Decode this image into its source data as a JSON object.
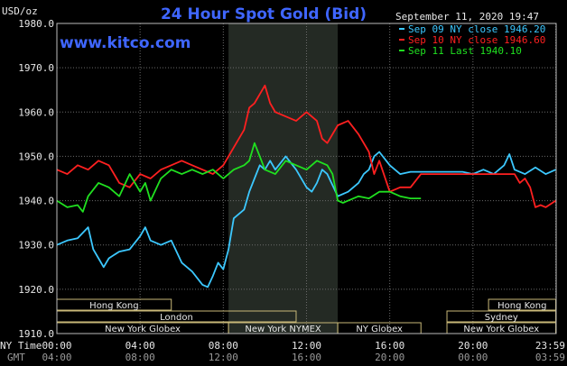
{
  "chart_data": {
    "type": "line",
    "title": "24 Hour Spot Gold (Bid)",
    "watermark": "www.kitco.com",
    "date_label": "September 11, 2020 19:47",
    "ylabel": "USD/oz",
    "ylim": [
      1910,
      1980
    ],
    "y_ticks": [
      "1980.0",
      "1970.0",
      "1960.0",
      "1950.0",
      "1940.0",
      "1930.0",
      "1920.0",
      "1910.0"
    ],
    "y_tick_values": [
      1980,
      1970,
      1960,
      1950,
      1940,
      1930,
      1920,
      1910
    ],
    "x_hours": [
      0,
      24
    ],
    "x_ticks_ny": [
      "00:00",
      "04:00",
      "08:00",
      "12:00",
      "16:00",
      "20:00",
      "23:59"
    ],
    "x_ticks_gmt": [
      "04:00",
      "08:00",
      "12:00",
      "16:00",
      "20:00",
      "00:00",
      "03:59"
    ],
    "x_tick_hours": [
      0,
      4,
      8,
      12,
      16,
      20,
      23.98
    ],
    "ny_time_label": "NY Time",
    "gmt_label": "GMT",
    "grid": true,
    "highlight_band_hours": [
      8.25,
      13.5
    ],
    "legend": [
      {
        "label": "Sep 09 NY close 1946.20",
        "color": "#3cc8ff"
      },
      {
        "label": "Sep 10 NY close 1946.60",
        "color": "#ff2020"
      },
      {
        "label": "Sep 11 Last 1940.10",
        "color": "#20e020"
      }
    ],
    "sessions": [
      {
        "label": "Hong Kong",
        "start": 0,
        "end": 5.5,
        "row": 0
      },
      {
        "label": "London",
        "start": 0,
        "end": 11.5,
        "row": 1
      },
      {
        "label": "New York Globex",
        "start": 0,
        "end": 8.25,
        "row": 2
      },
      {
        "label": "New York NYMEX",
        "start": 8.25,
        "end": 13.5,
        "row": 2
      },
      {
        "label": "NY Globex",
        "start": 13.5,
        "end": 17.5,
        "row": 2
      },
      {
        "label": "Hong Kong",
        "start": 20.75,
        "end": 23.98,
        "row": 0
      },
      {
        "label": "Sydney",
        "start": 18.75,
        "end": 23.98,
        "row": 1
      },
      {
        "label": "New York Globex",
        "start": 18.75,
        "end": 23.98,
        "row": 2
      }
    ],
    "series": [
      {
        "name": "Sep 09 NY close 1946.20",
        "color": "#3cc8ff",
        "x": [
          0,
          0.5,
          1.0,
          1.5,
          1.75,
          2.0,
          2.25,
          2.5,
          3.0,
          3.5,
          4.0,
          4.25,
          4.5,
          5.0,
          5.5,
          6.0,
          6.5,
          7.0,
          7.25,
          7.5,
          7.75,
          8.0,
          8.25,
          8.5,
          9.0,
          9.25,
          9.5,
          9.75,
          10.0,
          10.25,
          10.5,
          11.0,
          11.5,
          12.0,
          12.25,
          12.5,
          12.75,
          13.0,
          13.5,
          14.0,
          14.5,
          14.75,
          15.0,
          15.25,
          15.5,
          16.0,
          16.5,
          17.0,
          17.5,
          18.0,
          18.5,
          19.0,
          19.5,
          20.0,
          20.5,
          21.0,
          21.5,
          21.75,
          22.0,
          22.5,
          23.0,
          23.5,
          23.98
        ],
        "values": [
          1930.0,
          1931.0,
          1931.5,
          1934.0,
          1929.0,
          1927.0,
          1925.0,
          1927.0,
          1928.5,
          1929.0,
          1932.0,
          1934.0,
          1931.0,
          1930.0,
          1931.0,
          1926.0,
          1924.0,
          1921.0,
          1920.5,
          1923.0,
          1926.0,
          1924.5,
          1929.0,
          1936.0,
          1938.0,
          1942.0,
          1945.0,
          1948.0,
          1947.0,
          1949.0,
          1947.0,
          1950.0,
          1947.0,
          1943.0,
          1942.0,
          1944.0,
          1947.0,
          1946.0,
          1941.0,
          1942.0,
          1944.0,
          1946.0,
          1947.0,
          1950.0,
          1951.0,
          1948.0,
          1946.0,
          1946.5,
          1946.5,
          1946.5,
          1946.5,
          1946.5,
          1946.5,
          1946.0,
          1947.0,
          1946.0,
          1948.0,
          1950.5,
          1947.0,
          1946.0,
          1947.5,
          1946.0,
          1947.0
        ]
      },
      {
        "name": "Sep 10 NY close 1946.60",
        "color": "#ff2020",
        "x": [
          0,
          0.5,
          1.0,
          1.5,
          2.0,
          2.5,
          3.0,
          3.5,
          4.0,
          4.5,
          5.0,
          5.5,
          6.0,
          6.5,
          7.0,
          7.5,
          8.0,
          8.5,
          9.0,
          9.25,
          9.5,
          9.75,
          10.0,
          10.25,
          10.5,
          11.0,
          11.5,
          12.0,
          12.5,
          12.75,
          13.0,
          13.5,
          14.0,
          14.5,
          15.0,
          15.25,
          15.5,
          16.0,
          16.5,
          17.0,
          17.5,
          18.0,
          18.5,
          19.0,
          19.5,
          20.0,
          20.5,
          21.0,
          21.5,
          22.0,
          22.25,
          22.5,
          22.75,
          23.0,
          23.25,
          23.5,
          23.98
        ],
        "values": [
          1947.0,
          1946.0,
          1948.0,
          1947.0,
          1949.0,
          1948.0,
          1944.0,
          1943.0,
          1946.0,
          1945.0,
          1947.0,
          1948.0,
          1949.0,
          1948.0,
          1947.0,
          1946.0,
          1948.0,
          1952.0,
          1956.0,
          1961.0,
          1962.0,
          1964.0,
          1966.0,
          1962.0,
          1960.0,
          1959.0,
          1958.0,
          1960.0,
          1958.0,
          1954.0,
          1953.0,
          1957.0,
          1958.0,
          1955.0,
          1951.0,
          1946.0,
          1949.0,
          1942.0,
          1943.0,
          1943.0,
          1946.0,
          1946.0,
          1946.0,
          1946.0,
          1946.0,
          1946.0,
          1946.0,
          1946.0,
          1946.0,
          1946.0,
          1944.0,
          1945.0,
          1943.0,
          1938.5,
          1939.0,
          1938.5,
          1940.0
        ]
      },
      {
        "name": "Sep 11 Last 1940.10",
        "color": "#20e020",
        "x": [
          0,
          0.5,
          1.0,
          1.25,
          1.5,
          2.0,
          2.5,
          3.0,
          3.5,
          4.0,
          4.25,
          4.5,
          5.0,
          5.5,
          6.0,
          6.5,
          7.0,
          7.5,
          8.0,
          8.5,
          9.0,
          9.25,
          9.5,
          9.75,
          10.0,
          10.5,
          11.0,
          11.5,
          12.0,
          12.5,
          13.0,
          13.25,
          13.5,
          13.75,
          14.0,
          14.5,
          15.0,
          15.5,
          16.0,
          16.5,
          17.0,
          17.5
        ],
        "values": [
          1940.0,
          1938.5,
          1939.0,
          1937.5,
          1941.0,
          1944.0,
          1943.0,
          1941.0,
          1946.0,
          1942.0,
          1944.0,
          1940.0,
          1945.0,
          1947.0,
          1946.0,
          1947.0,
          1946.0,
          1947.0,
          1945.0,
          1947.0,
          1948.0,
          1949.0,
          1953.0,
          1950.0,
          1947.0,
          1946.0,
          1949.0,
          1948.0,
          1947.0,
          1949.0,
          1948.0,
          1946.0,
          1940.0,
          1939.5,
          1940.0,
          1941.0,
          1940.5,
          1942.0,
          1942.0,
          1941.0,
          1940.5,
          1940.5
        ]
      }
    ]
  }
}
